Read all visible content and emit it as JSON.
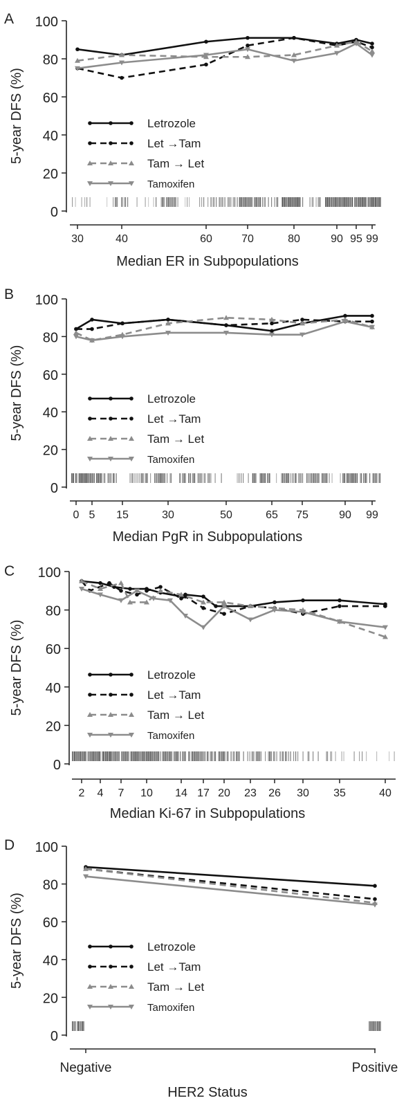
{
  "styles": {
    "let": {
      "color": "#111111",
      "dash": "",
      "marker": "dot"
    },
    "lettam": {
      "color": "#111111",
      "dash": "9,6",
      "marker": "dot"
    },
    "tamlet": {
      "color": "#8c8c8c",
      "dash": "9,6",
      "marker": "tri-up"
    },
    "tam": {
      "color": "#8c8c8c",
      "dash": "",
      "marker": "tri-down"
    }
  },
  "chart_data": [
    {
      "panel": "A",
      "type": "line",
      "xlabel": "Median ER in Subpopulations",
      "ylabel": "5-year DFS (%)",
      "ylim": [
        0,
        100
      ],
      "yticks": [
        0,
        20,
        40,
        60,
        80,
        100
      ],
      "xticks": [
        30,
        40,
        60,
        70,
        80,
        90,
        95,
        99
      ],
      "legend": [
        "Letrozole",
        "Let →Tam",
        "Tam → Let",
        "Tamoxifen"
      ],
      "series": [
        {
          "name": "Letrozole",
          "style": "let",
          "x": [
            30,
            40,
            60,
            70,
            80,
            90,
            95,
            99
          ],
          "y": [
            85,
            82,
            89,
            91,
            91,
            88,
            90,
            88
          ]
        },
        {
          "name": "Let →Tam",
          "style": "lettam",
          "x": [
            30,
            40,
            60,
            70,
            80,
            90,
            95,
            99
          ],
          "y": [
            75,
            70,
            77,
            87,
            91,
            87,
            89,
            86
          ]
        },
        {
          "name": "Tam → Let",
          "style": "tamlet",
          "x": [
            30,
            40,
            60,
            70,
            80,
            90,
            95,
            99
          ],
          "y": [
            79,
            82,
            81,
            81,
            82,
            87,
            89,
            84
          ]
        },
        {
          "name": "Tamoxifen",
          "style": "tam",
          "x": [
            30,
            40,
            60,
            70,
            80,
            90,
            95,
            99
          ],
          "y": [
            75,
            78,
            82,
            85,
            79,
            83,
            88,
            82
          ]
        }
      ]
    },
    {
      "panel": "B",
      "type": "line",
      "xlabel": "Median PgR in Subpopulations",
      "ylabel": "5-year DFS (%)",
      "ylim": [
        0,
        100
      ],
      "yticks": [
        0,
        20,
        40,
        60,
        80,
        100
      ],
      "xticks": [
        0,
        5,
        15,
        30,
        50,
        65,
        75,
        90,
        99
      ],
      "legend": [
        "Letrozole",
        "Let →Tam",
        "Tam → Let",
        "Tamoxifen"
      ],
      "series": [
        {
          "name": "Letrozole",
          "style": "let",
          "x": [
            0,
            5,
            15,
            30,
            50,
            65,
            75,
            90,
            99
          ],
          "y": [
            84,
            89,
            87,
            89,
            86,
            83,
            87,
            91,
            91
          ]
        },
        {
          "name": "Let →Tam",
          "style": "lettam",
          "x": [
            0,
            5,
            15,
            30,
            50,
            65,
            75,
            90,
            99
          ],
          "y": [
            84,
            84,
            87,
            89,
            86,
            87,
            89,
            88,
            88
          ]
        },
        {
          "name": "Tam → Let",
          "style": "tamlet",
          "x": [
            0,
            5,
            15,
            30,
            50,
            65,
            75,
            90,
            99
          ],
          "y": [
            82,
            78,
            81,
            87,
            90,
            89,
            87,
            89,
            85
          ]
        },
        {
          "name": "Tamoxifen",
          "style": "tam",
          "x": [
            0,
            5,
            15,
            30,
            50,
            65,
            75,
            90,
            99
          ],
          "y": [
            80,
            78,
            80,
            82,
            82,
            81,
            81,
            88,
            85
          ]
        }
      ]
    },
    {
      "panel": "C",
      "type": "line",
      "xlabel": "Median Ki-67 in Subpopulations",
      "ylabel": "5-year DFS (%)",
      "ylim": [
        0,
        100
      ],
      "yticks": [
        0,
        20,
        40,
        60,
        80,
        100
      ],
      "xticks": [
        2,
        4,
        7,
        10,
        14,
        17,
        20,
        23,
        26,
        30,
        35,
        40
      ],
      "legend": [
        "Letrozole",
        "Let →Tam",
        "Tam → Let",
        "Tamoxifen"
      ],
      "series": [
        {
          "name": "Letrozole",
          "style": "let",
          "x": [
            2,
            4,
            6,
            8,
            10,
            12,
            14,
            15,
            17,
            19,
            23,
            26,
            30,
            35,
            40
          ],
          "y": [
            95,
            94,
            92,
            91,
            91,
            89,
            87,
            88,
            87,
            82,
            82,
            84,
            85,
            85,
            83
          ]
        },
        {
          "name": "Let →Tam",
          "style": "lettam",
          "x": [
            2,
            3,
            5,
            7,
            9,
            10,
            12,
            14,
            15,
            17,
            20,
            23,
            26,
            30,
            35,
            40
          ],
          "y": [
            95,
            90,
            94,
            90,
            88,
            90,
            92,
            86,
            87,
            81,
            78,
            82,
            81,
            78,
            82,
            82
          ]
        },
        {
          "name": "Tam → Let",
          "style": "tamlet",
          "x": [
            2,
            4,
            7,
            8,
            10,
            12,
            14,
            17,
            20,
            23,
            26,
            30,
            35,
            40
          ],
          "y": [
            95,
            91,
            94,
            84,
            84,
            90,
            88,
            84,
            84,
            82,
            81,
            80,
            74,
            66
          ]
        },
        {
          "name": "Tamoxifen",
          "style": "tam",
          "x": [
            2,
            4,
            7,
            9,
            11,
            13,
            15,
            17,
            20,
            23,
            26,
            30,
            35,
            40
          ],
          "y": [
            91,
            88,
            85,
            90,
            86,
            85,
            77,
            71,
            82,
            75,
            80,
            79,
            74,
            71
          ]
        }
      ]
    },
    {
      "panel": "D",
      "type": "line",
      "xlabel": "HER2 Status",
      "ylabel": "5-year DFS (%)",
      "ylim": [
        0,
        100
      ],
      "yticks": [
        0,
        20,
        40,
        60,
        80,
        100
      ],
      "categories": [
        "Negative",
        "Positive"
      ],
      "legend": [
        "Letrozole",
        "Let →Tam",
        "Tam → Let",
        "Tamoxifen"
      ],
      "series": [
        {
          "name": "Letrozole",
          "style": "let",
          "values": [
            89,
            79
          ]
        },
        {
          "name": "Let →Tam",
          "style": "lettam",
          "values": [
            88,
            72
          ]
        },
        {
          "name": "Tam → Let",
          "style": "tamlet",
          "values": [
            88,
            70
          ]
        },
        {
          "name": "Tamoxifen",
          "style": "tam",
          "values": [
            84,
            69
          ]
        }
      ]
    }
  ]
}
